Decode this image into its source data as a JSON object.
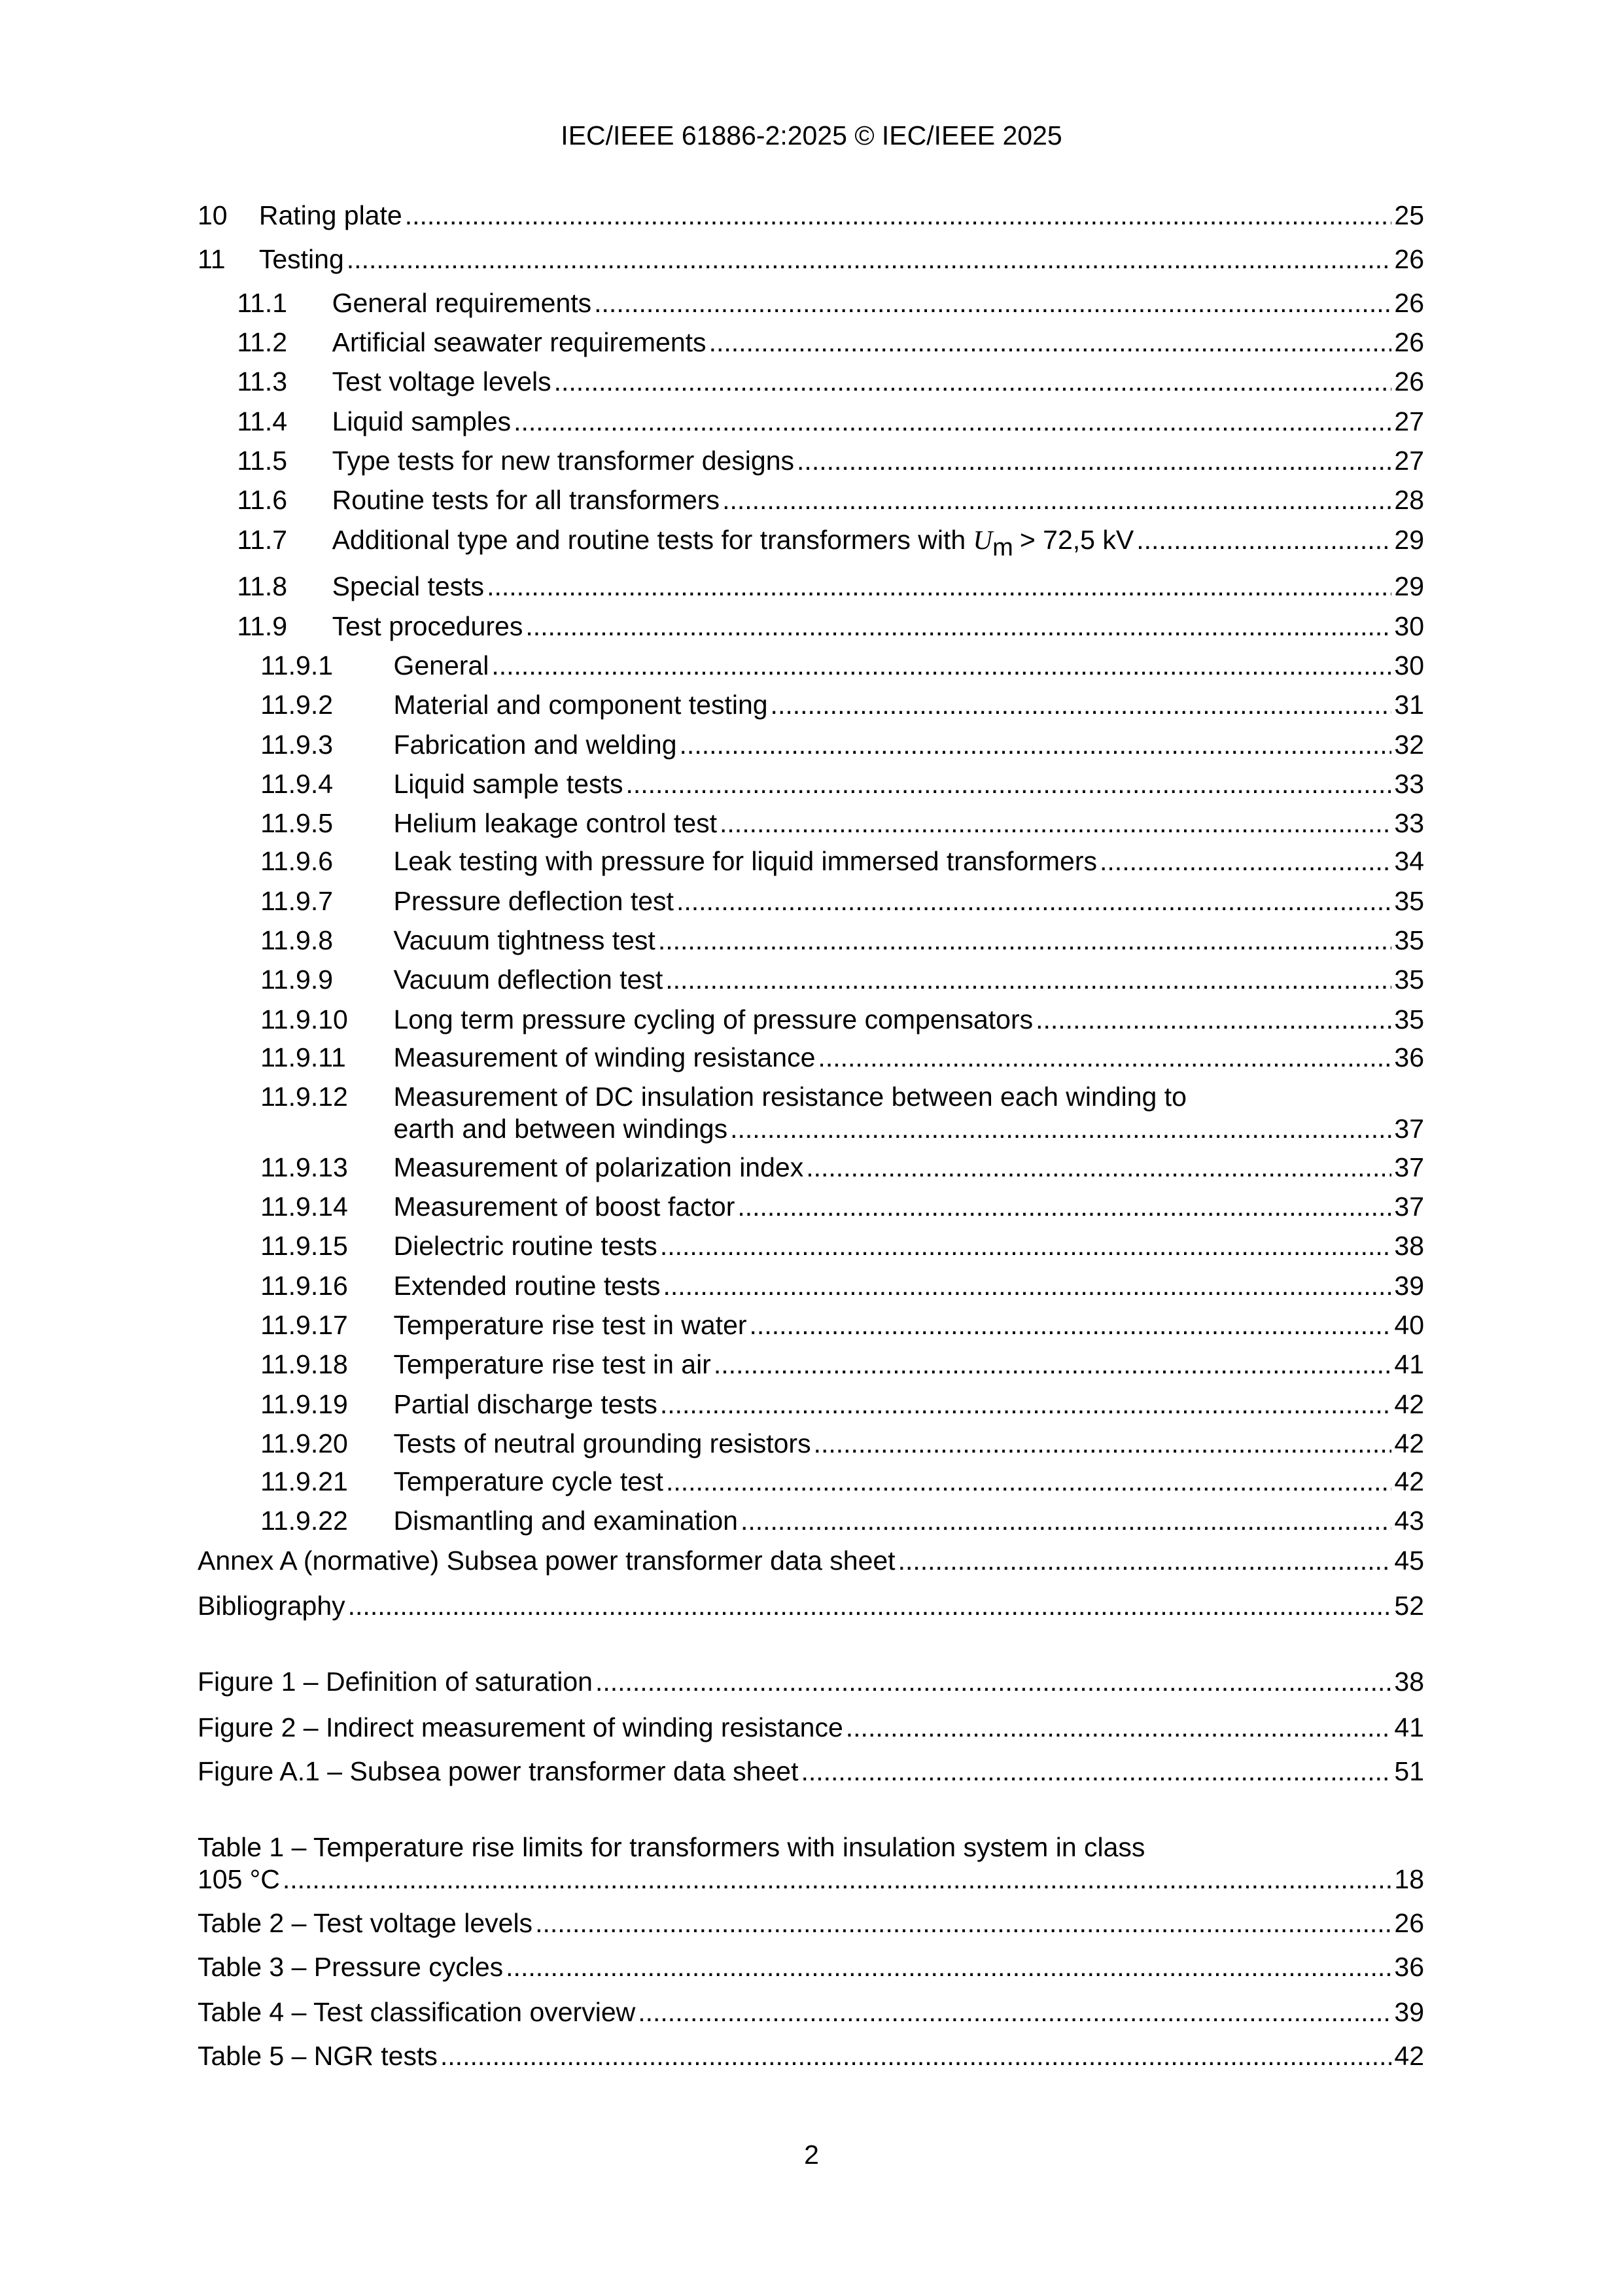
{
  "header": "IEC/IEEE 61886-2:2025 © IEC/IEEE 2025",
  "page_number": "2",
  "toc": [
    {
      "level": 1,
      "num": "10",
      "title": "Rating plate",
      "page": "25"
    },
    {
      "level": 1,
      "num": "11",
      "title": "Testing",
      "page": "26"
    },
    {
      "level": 2,
      "num": "11.1",
      "title": "General requirements",
      "page": "26"
    },
    {
      "level": 2,
      "num": "11.2",
      "title": "Artificial seawater requirements",
      "page": "26"
    },
    {
      "level": 2,
      "num": "11.3",
      "title": "Test voltage levels",
      "page": "26"
    },
    {
      "level": 2,
      "num": "11.4",
      "title": "Liquid samples",
      "page": "27"
    },
    {
      "level": 2,
      "num": "11.5",
      "title": "Type tests for new transformer designs",
      "page": "27"
    },
    {
      "level": 2,
      "num": "11.6",
      "title": "Routine tests for all transformers",
      "page": "28"
    },
    {
      "level": 2,
      "num": "11.7",
      "title": "Additional type and routine tests for transformers with",
      "symbol": "U",
      "subscript": "m",
      "title_after": "> 72,5 kV",
      "page": "29"
    },
    {
      "level": 2,
      "num": "11.8",
      "title": "Special tests",
      "page": "29"
    },
    {
      "level": 2,
      "num": "11.9",
      "title": "Test procedures",
      "page": "30"
    },
    {
      "level": 3,
      "num": "11.9.1",
      "title": "General",
      "page": "30"
    },
    {
      "level": 3,
      "num": "11.9.2",
      "title": "Material and component testing",
      "page": "31"
    },
    {
      "level": 3,
      "num": "11.9.3",
      "title": "Fabrication and welding",
      "page": "32"
    },
    {
      "level": 3,
      "num": "11.9.4",
      "title": "Liquid sample tests",
      "page": "33"
    },
    {
      "level": 3,
      "num": "11.9.5",
      "title": "Helium leakage control test",
      "page": "33"
    },
    {
      "level": 3,
      "num": "11.9.6",
      "title": "Leak testing with pressure for liquid immersed transformers",
      "page": "34"
    },
    {
      "level": 3,
      "num": "11.9.7",
      "title": "Pressure deflection test",
      "page": "35"
    },
    {
      "level": 3,
      "num": "11.9.8",
      "title": "Vacuum tightness test",
      "page": "35"
    },
    {
      "level": 3,
      "num": "11.9.9",
      "title": "Vacuum deflection test",
      "page": "35"
    },
    {
      "level": 3,
      "num": "11.9.10",
      "title": "Long term pressure cycling of pressure compensators",
      "page": "35"
    },
    {
      "level": 3,
      "num": "11.9.11",
      "title": "Measurement of winding resistance",
      "page": "36"
    },
    {
      "level": 3,
      "num": "11.9.12",
      "title": "Measurement of DC insulation resistance between each winding to",
      "title_line2": "earth and between windings",
      "page": "37"
    },
    {
      "level": 3,
      "num": "11.9.13",
      "title": "Measurement of polarization index",
      "page": "37"
    },
    {
      "level": 3,
      "num": "11.9.14",
      "title": "Measurement of boost factor",
      "page": "37"
    },
    {
      "level": 3,
      "num": "11.9.15",
      "title": "Dielectric routine tests",
      "page": "38"
    },
    {
      "level": 3,
      "num": "11.9.16",
      "title": "Extended routine tests",
      "page": "39"
    },
    {
      "level": 3,
      "num": "11.9.17",
      "title": "Temperature rise test in water",
      "page": "40"
    },
    {
      "level": 3,
      "num": "11.9.18",
      "title": "Temperature rise test in air",
      "page": "41"
    },
    {
      "level": 3,
      "num": "11.9.19",
      "title": "Partial discharge tests",
      "page": "42"
    },
    {
      "level": 3,
      "num": "11.9.20",
      "title": "Tests of neutral grounding resistors",
      "page": "42"
    },
    {
      "level": 3,
      "num": "11.9.21",
      "title": "Temperature cycle test",
      "page": "42"
    },
    {
      "level": 3,
      "num": "11.9.22",
      "title": "Dismantling and examination",
      "page": "43"
    },
    {
      "level": 0,
      "num": "",
      "title": "Annex A (normative)  Subsea power transformer data sheet",
      "page": "45"
    },
    {
      "level": 0,
      "num": "",
      "title": "Bibliography",
      "page": "52"
    },
    {
      "level": 0,
      "num": "",
      "title": "Figure 1 – Definition of saturation",
      "page": "38"
    },
    {
      "level": 0,
      "num": "",
      "title": "Figure 2 – Indirect measurement of winding resistance",
      "page": "41"
    },
    {
      "level": 0,
      "num": "",
      "title": "Figure A.1 – Subsea power transformer data sheet",
      "page": "51"
    },
    {
      "level": 0,
      "num": "",
      "title": "Table 1 – Temperature rise limits for transformers with insulation system in class",
      "title_line2": "105 °C",
      "page": "18"
    },
    {
      "level": 0,
      "num": "",
      "title": "Table 2 – Test voltage levels",
      "page": "26"
    },
    {
      "level": 0,
      "num": "",
      "title": "Table 3 – Pressure cycles",
      "page": "36"
    },
    {
      "level": 0,
      "num": "",
      "title": "Table 4 – Test classification overview",
      "page": "39"
    },
    {
      "level": 0,
      "num": "",
      "title": "Table 5 – NGR tests",
      "page": "42"
    }
  ]
}
